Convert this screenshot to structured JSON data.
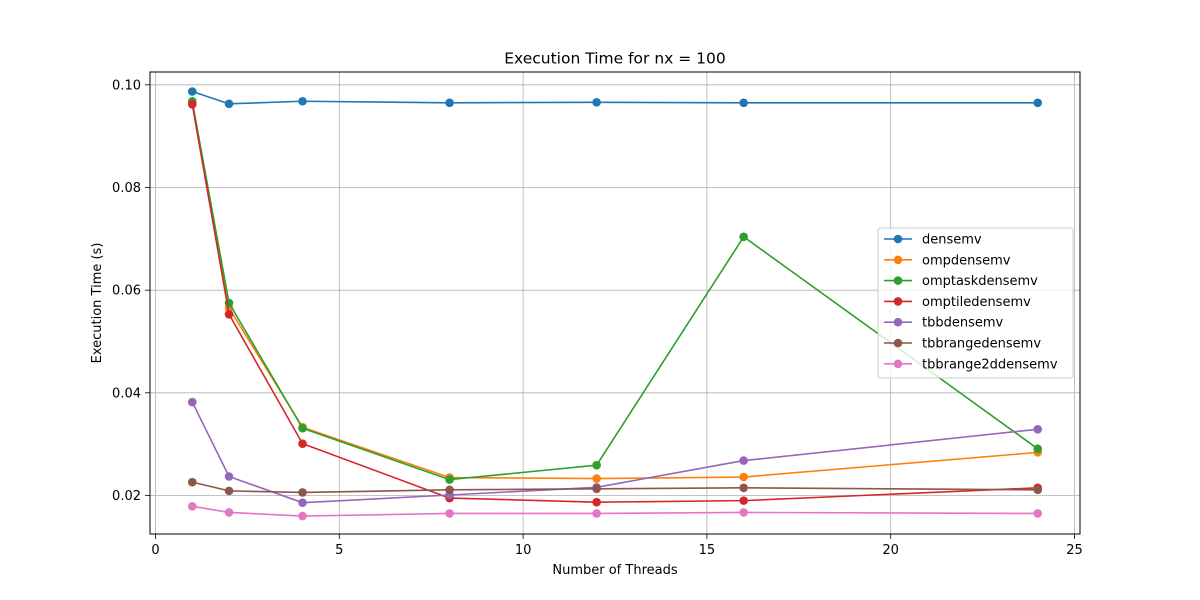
{
  "chart_data": {
    "type": "line",
    "title": "Execution Time for nx = 100",
    "xlabel": "Number of Threads",
    "ylabel": "Execution Time (s)",
    "xlim": [
      -0.15,
      25.15
    ],
    "ylim": [
      0.0125,
      0.1025
    ],
    "xticks": [
      0,
      5,
      10,
      15,
      20,
      25
    ],
    "xtick_labels": [
      "0",
      "5",
      "10",
      "15",
      "20",
      "25"
    ],
    "yticks": [
      0.02,
      0.04,
      0.06,
      0.08,
      0.1
    ],
    "ytick_labels": [
      "0.02",
      "0.04",
      "0.06",
      "0.08",
      "0.10"
    ],
    "grid": true,
    "legend_position": "center-right",
    "x": [
      1,
      2,
      4,
      8,
      12,
      16,
      24
    ],
    "series": [
      {
        "name": "densemv",
        "color": "#1f77b4",
        "values": [
          0.0987,
          0.0963,
          0.0968,
          0.0965,
          0.0966,
          0.0965,
          0.0965
        ]
      },
      {
        "name": "ompdensemv",
        "color": "#ff7f0e",
        "values": [
          0.0966,
          0.0565,
          0.0333,
          0.0235,
          0.0233,
          0.0236,
          0.0284
        ]
      },
      {
        "name": "omptaskdensemv",
        "color": "#2ca02c",
        "values": [
          0.0968,
          0.0575,
          0.0331,
          0.0231,
          0.0259,
          0.0704,
          0.0291
        ]
      },
      {
        "name": "omptiledensemv",
        "color": "#d62728",
        "values": [
          0.0962,
          0.0553,
          0.0301,
          0.0195,
          0.0187,
          0.019,
          0.0215
        ]
      },
      {
        "name": "tbbdensemv",
        "color": "#9467bd",
        "values": [
          0.0382,
          0.0237,
          0.0186,
          0.0201,
          0.0216,
          0.0268,
          0.0329
        ]
      },
      {
        "name": "tbbrangedensemv",
        "color": "#8c564b",
        "values": [
          0.0226,
          0.0209,
          0.0206,
          0.0211,
          0.0213,
          0.0215,
          0.0211
        ]
      },
      {
        "name": "tbbrange2ddensemv",
        "color": "#e377c2",
        "values": [
          0.0179,
          0.0167,
          0.016,
          0.0165,
          0.0165,
          0.0167,
          0.0165
        ]
      }
    ]
  }
}
